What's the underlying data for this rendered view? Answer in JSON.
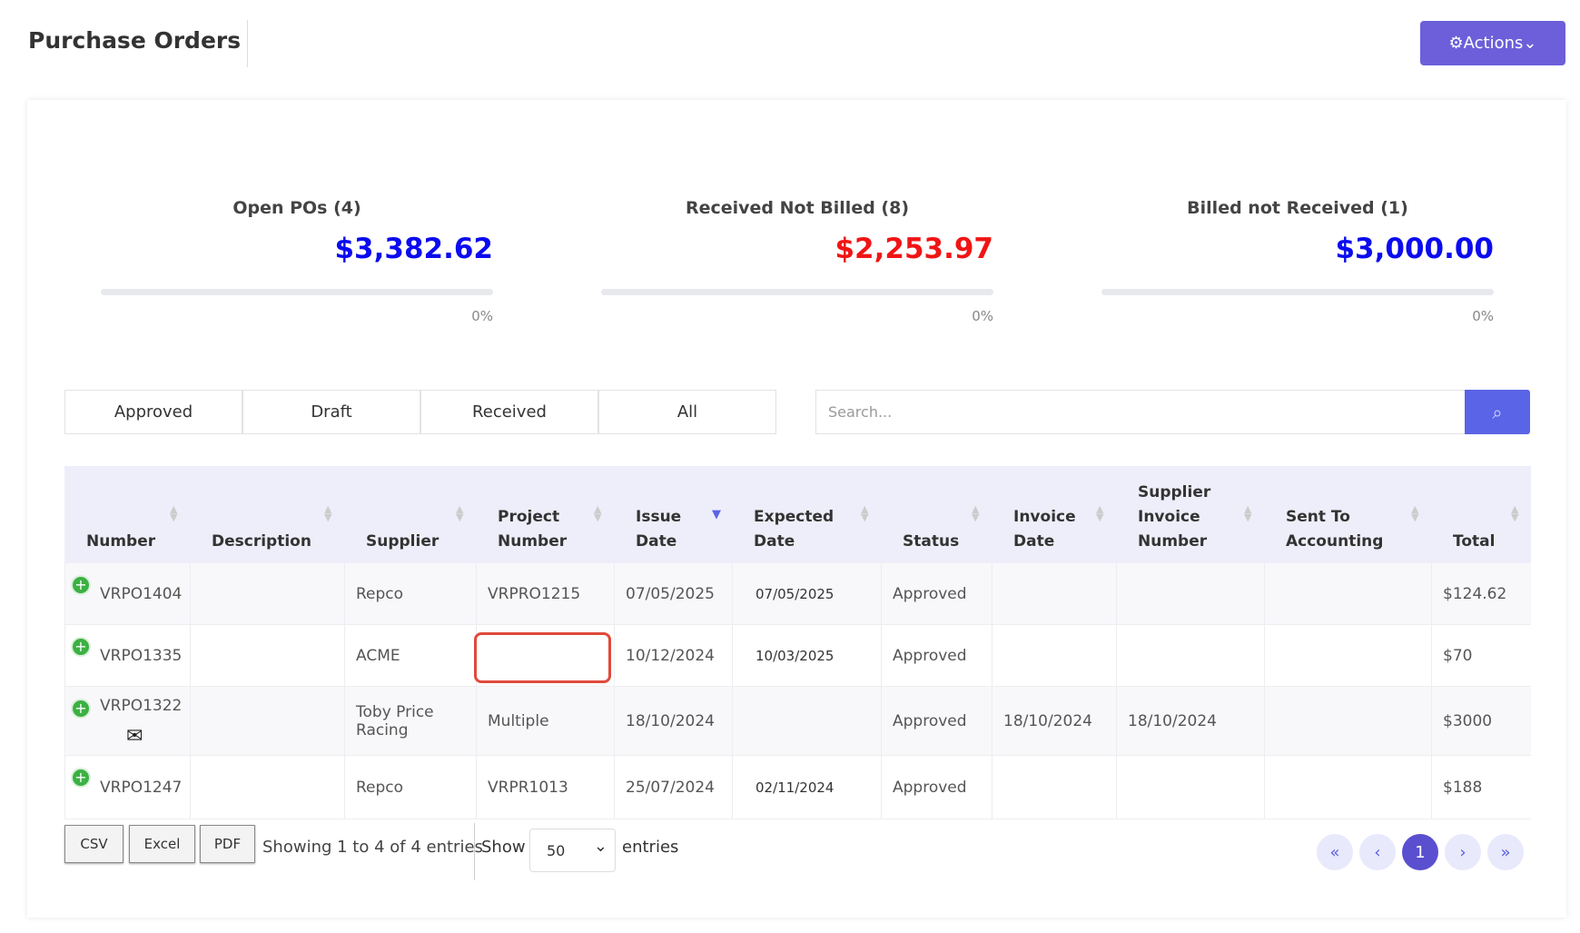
{
  "header": {
    "title": "Purchase Orders",
    "action": "Actions"
  },
  "summary": [
    {
      "label": "Open POs (4)",
      "amount": "$3,382.62",
      "percent": "0%",
      "color": "#0b0bf0"
    },
    {
      "label": "Received Not Billed (8)",
      "amount": "$2,253.97",
      "percent": "0%",
      "color": "#f01515"
    },
    {
      "label": "Billed not Received (1)",
      "amount": "$3,000.00",
      "percent": "0%",
      "color": "#0b0bf0"
    }
  ],
  "tabs": [
    "Approved",
    "Draft",
    "Received",
    "All"
  ],
  "search": {
    "placeholder": "Search..."
  },
  "table": {
    "columns": {
      "number": "Number",
      "description": "Description",
      "supplier": "Supplier",
      "project": "Project Number",
      "issue": "Issue Date",
      "expected": "Expected Date",
      "status": "Status",
      "invoice": "Invoice Date",
      "supplier_invoice": "Supplier Invoice Number",
      "sent": "Sent To Accounting",
      "total": "Total"
    },
    "rows": [
      {
        "number": "VRPO1404",
        "supplier": "Repco",
        "project": "VRPRO1215",
        "issue": "07/05/2025",
        "expected": "07/05/2025",
        "status": "Approved",
        "total": "$124.62"
      },
      {
        "number": "VRPO1335",
        "supplier": "ACME",
        "issue": "10/12/2024",
        "expected": "10/03/2025",
        "status": "Approved",
        "total": "$70"
      },
      {
        "number": "VRPO1322",
        "supplier": "Toby Price Racing",
        "project": "Multiple",
        "issue": "18/10/2024",
        "status": "Approved",
        "invoice": "18/10/2024",
        "supplier_invoice": "18/10/2024",
        "total": "$3000"
      },
      {
        "number": "VRPO1247",
        "supplier": "Repco",
        "project": "VRPR1013",
        "issue": "25/07/2024",
        "expected": "02/11/2024",
        "status": "Approved",
        "total": "$188"
      }
    ]
  },
  "footer": {
    "exports": [
      "CSV",
      "Excel",
      "PDF"
    ],
    "info": "Showing 1 to 4 of 4 entries",
    "show": "Show",
    "page_size": "50",
    "entries": "entries",
    "page": "1"
  }
}
